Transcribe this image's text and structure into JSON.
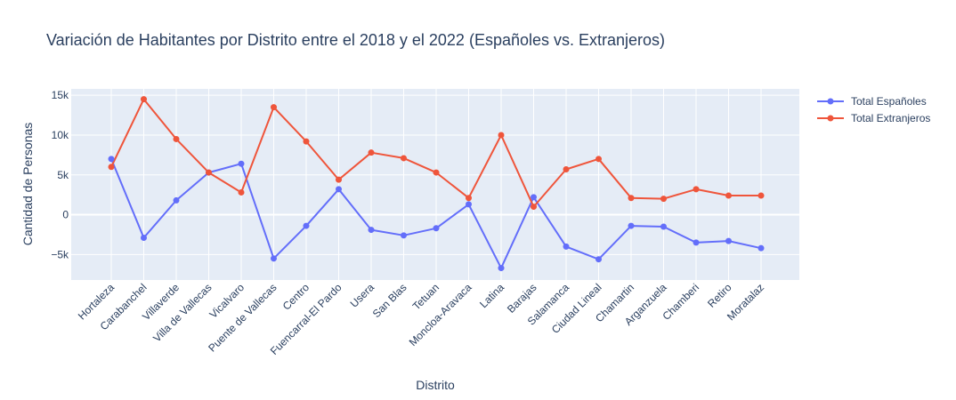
{
  "chart_data": {
    "type": "line",
    "title": "Variación de Habitantes por Distrito entre el 2018 y el 2022 (Españoles vs. Extranjeros)",
    "xlabel": "Distrito",
    "ylabel": "Cantidad de Personas",
    "categories": [
      "Hortaleza",
      "Carabanchel",
      "Villaverde",
      "Villa de Vallecas",
      "Vicalvaro",
      "Puente de Vallecas",
      "Centro",
      "Fuencarral-El Pardo",
      "Usera",
      "San Blas",
      "Tetuan",
      "Moncloa-Aravaca",
      "Latina",
      "Barajas",
      "Salamanca",
      "Ciudad Lineal",
      "Chamartin",
      "Arganzuela",
      "Chamberi",
      "Retiro",
      "Moratalaz"
    ],
    "ylim": [
      -8200,
      15800
    ],
    "yticks": [
      -5000,
      0,
      5000,
      10000,
      15000
    ],
    "ytick_labels": [
      "−5k",
      "0",
      "5k",
      "10k",
      "15k"
    ],
    "grid": true,
    "legend_position": "top-right",
    "series": [
      {
        "name": "Total Españoles",
        "color": "#636efa",
        "values": [
          7000,
          -2900,
          1800,
          5300,
          6400,
          -5500,
          -1400,
          3200,
          -1900,
          -2600,
          -1700,
          1300,
          -6700,
          2200,
          -4000,
          -5600,
          -1400,
          -1500,
          -3500,
          -3300,
          -4200
        ]
      },
      {
        "name": "Total Extranjeros",
        "color": "#ef553b",
        "values": [
          6000,
          14500,
          9500,
          5300,
          2800,
          13500,
          9200,
          4400,
          7800,
          7100,
          5300,
          2100,
          10000,
          1000,
          5700,
          7000,
          2100,
          2000,
          3200,
          2400,
          2400
        ]
      }
    ]
  }
}
